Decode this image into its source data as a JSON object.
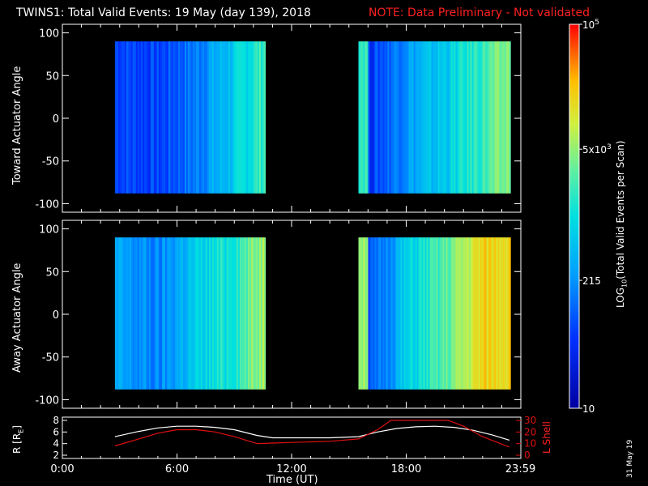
{
  "header": {
    "title": "TWINS1: Total Valid Events: 19 May (day 139), 2018",
    "note": "NOTE: Data Preliminary - Not validated"
  },
  "side_label": "31 May 19",
  "colors": {
    "title": "#ffffff",
    "note": "#ff2020",
    "lshell": "#e01010",
    "radius": "#ffffff"
  },
  "chart_data": [
    {
      "type": "heatmap",
      "title": "",
      "ylabel": "Toward Actuator Angle",
      "ylim": [
        -110,
        110
      ],
      "yticks": [
        "100",
        "50",
        "0",
        "-50",
        "-100"
      ],
      "ytick_values": [
        100,
        50,
        0,
        -50,
        -100
      ],
      "x_unit": "hours UT",
      "data_blocks": [
        {
          "x": [
            2.75,
            10.6
          ],
          "y": [
            -88,
            90
          ]
        },
        {
          "x": [
            15.5,
            23.4
          ],
          "y": [
            -88,
            90
          ]
        }
      ],
      "mean_level_by_hour": [
        {
          "x": 3,
          "level": 0.22
        },
        {
          "x": 5,
          "level": 0.2
        },
        {
          "x": 7,
          "level": 0.3
        },
        {
          "x": 9,
          "level": 0.45
        },
        {
          "x": 10.5,
          "level": 0.58
        },
        {
          "x": 16,
          "level": 0.18
        },
        {
          "x": 18,
          "level": 0.35
        },
        {
          "x": 20,
          "level": 0.45
        },
        {
          "x": 22,
          "level": 0.58
        },
        {
          "x": 23.4,
          "level": 0.66
        }
      ]
    },
    {
      "type": "heatmap",
      "title": "",
      "ylabel": "Away Actuator Angle",
      "ylim": [
        -110,
        110
      ],
      "yticks": [
        "100",
        "50",
        "0",
        "-50",
        "-100"
      ],
      "ytick_values": [
        100,
        50,
        0,
        -50,
        -100
      ],
      "x_unit": "hours UT",
      "data_blocks": [
        {
          "x": [
            2.75,
            10.6
          ],
          "y": [
            -88,
            90
          ]
        },
        {
          "x": [
            15.5,
            23.4
          ],
          "y": [
            -88,
            90
          ]
        }
      ],
      "mean_level_by_hour": [
        {
          "x": 3,
          "level": 0.35
        },
        {
          "x": 5,
          "level": 0.3
        },
        {
          "x": 7,
          "level": 0.45
        },
        {
          "x": 9,
          "level": 0.55
        },
        {
          "x": 10.5,
          "level": 0.7
        },
        {
          "x": 16,
          "level": 0.2
        },
        {
          "x": 18,
          "level": 0.45
        },
        {
          "x": 20,
          "level": 0.6
        },
        {
          "x": 22,
          "level": 0.8
        },
        {
          "x": 23.4,
          "level": 0.82
        }
      ]
    },
    {
      "type": "line",
      "ylabel_left": "R [R",
      "ylabel_left_sub": "E",
      "ylabel_left_close": "]",
      "ylabel_right": "L Shell",
      "xlabel": "Time (UT)",
      "xlim": [
        0,
        24
      ],
      "xticks": [
        "0:00",
        "6:00",
        "12:00",
        "18:00",
        "23:59"
      ],
      "xtick_values": [
        0,
        6,
        12,
        18,
        23.98
      ],
      "ylim_left": [
        2,
        8
      ],
      "yticks_left": [
        "8",
        "6",
        "4",
        "2"
      ],
      "ytick_values_left": [
        8,
        6,
        4,
        2
      ],
      "ylim_right": [
        0,
        30
      ],
      "yticks_right": [
        "30",
        "20",
        "10",
        "0"
      ],
      "ytick_values_right": [
        30,
        20,
        10,
        0
      ],
      "series": [
        {
          "axis": "left",
          "x": [
            2.75,
            4,
            5,
            6,
            7,
            8,
            9,
            10.2,
            11,
            12,
            13,
            14,
            15.5,
            16.5,
            17.5,
            18.5,
            19.5,
            20.5,
            21.5,
            22.5,
            23.4
          ],
          "y": [
            5.2,
            6.1,
            6.7,
            7.0,
            7.0,
            6.8,
            6.4,
            5.4,
            5.0,
            5.0,
            5.0,
            5.0,
            5.2,
            6.0,
            6.6,
            6.9,
            7.0,
            6.8,
            6.3,
            5.5,
            4.6
          ]
        },
        {
          "axis": "right",
          "x": [
            2.75,
            4,
            5,
            6,
            7,
            8,
            9,
            10.2,
            11,
            12,
            13,
            14,
            15.5,
            16.5,
            17.2,
            20.2,
            21,
            22,
            23.4
          ],
          "y": [
            8,
            14,
            19,
            22,
            22,
            20,
            16,
            10,
            10.5,
            11,
            11.5,
            12,
            14,
            22,
            30,
            30,
            25,
            16,
            7
          ]
        }
      ]
    }
  ],
  "colorbar": {
    "ylabel": "LOG",
    "ylabel_sub": "10",
    "ylabel_rest": "(Total Valid Events per Scan)",
    "scale": "log",
    "range": [
      10,
      100000
    ],
    "ticks": [
      {
        "value": 100000,
        "base": "10",
        "exp": "5"
      },
      {
        "value": 5000,
        "base": "5x10",
        "exp": "3"
      },
      {
        "value": 215,
        "base": "215",
        "exp": ""
      },
      {
        "value": 10,
        "base": "10",
        "exp": ""
      }
    ]
  }
}
